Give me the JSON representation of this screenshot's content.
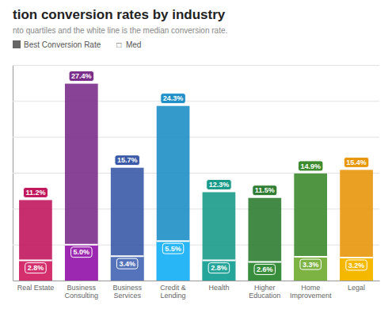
{
  "chart_data": {
    "type": "bar",
    "title": "tion conversion rates by industry",
    "subtitle": "nto quartiles and the white line is the median conversion rate.",
    "categories": [
      "Real Estate",
      "Business Consulting",
      "Business Services",
      "Credit & Lending",
      "Health",
      "Higher Education",
      "Home Improvement",
      "Legal"
    ],
    "series": [
      {
        "name": "Best Conversion Rate",
        "color": "#666666",
        "colors": [
          "#c0175d",
          "#7b2d8b",
          "#3a5aa8",
          "#1e8fc7",
          "#1a9b8a",
          "#2e7d32",
          "#3d8b2e",
          "#e8960a"
        ],
        "values": [
          11.2,
          27.4,
          15.7,
          24.3,
          12.3,
          11.5,
          14.9,
          15.4
        ],
        "value_labels": [
          "11.2%",
          "27.4%",
          "15.7%",
          "24.3%",
          "12.3%",
          "11.5%",
          "14.9%",
          "15.4%"
        ]
      },
      {
        "name": "□  Med",
        "colors": [
          "#d4306e",
          "#9c27b0",
          "#5473bb",
          "#29b6f6",
          "#26a69a",
          "#388e3c",
          "#7cb342",
          "#f5b800"
        ],
        "values": [
          2.8,
          5.0,
          3.4,
          5.5,
          2.8,
          2.6,
          3.3,
          3.2
        ],
        "value_labels": [
          "2.8%",
          "5.0%",
          "3.4%",
          "5.5%",
          "2.8%",
          "2.6%",
          "3.3%",
          "3.2%"
        ]
      }
    ],
    "ylim": [
      0,
      30
    ],
    "yticks": [
      0,
      5,
      10,
      15,
      20,
      25,
      30
    ],
    "grid": true,
    "data_labels": true,
    "tick_labels": "x"
  }
}
